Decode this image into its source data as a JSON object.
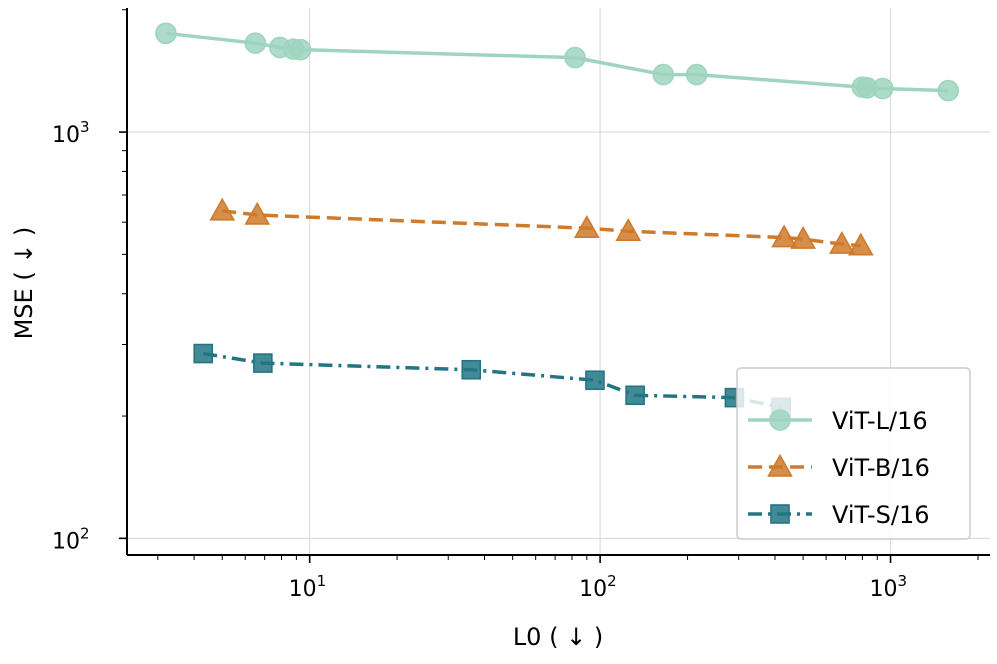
{
  "chart_data": {
    "type": "line",
    "xscale": "log",
    "yscale": "log",
    "xlabel": "L0 ( ↓ )",
    "ylabel": "MSE ( ↓ )",
    "xlim": [
      2.35,
      2200
    ],
    "ylim": [
      91,
      2020
    ],
    "x_ticks": [
      {
        "value": 10,
        "base": "10",
        "exp": "1"
      },
      {
        "value": 100,
        "base": "10",
        "exp": "2"
      },
      {
        "value": 1000,
        "base": "10",
        "exp": "3"
      }
    ],
    "y_ticks": [
      {
        "value": 100,
        "base": "10",
        "exp": "2"
      },
      {
        "value": 1000,
        "base": "10",
        "exp": "3"
      }
    ],
    "grid": true,
    "legend_position": "bottom-right",
    "series": [
      {
        "name": "ViT-L/16",
        "color": "#9fd5c0",
        "marker": "circle",
        "dash": "solid",
        "points": [
          [
            3.2,
            1750
          ],
          [
            6.5,
            1655
          ],
          [
            7.9,
            1615
          ],
          [
            8.8,
            1600
          ],
          [
            9.3,
            1595
          ],
          [
            82,
            1525
          ],
          [
            165,
            1385
          ],
          [
            215,
            1385
          ],
          [
            800,
            1290
          ],
          [
            830,
            1285
          ],
          [
            940,
            1280
          ],
          [
            1580,
            1265
          ]
        ]
      },
      {
        "name": "ViT-B/16",
        "color": "#cf7a2c",
        "marker": "triangle",
        "dash": "dashed",
        "points": [
          [
            5.0,
            640
          ],
          [
            6.6,
            625
          ],
          [
            90,
            580
          ],
          [
            125,
            570
          ],
          [
            430,
            550
          ],
          [
            500,
            545
          ],
          [
            680,
            530
          ],
          [
            790,
            525
          ]
        ]
      },
      {
        "name": "ViT-S/16",
        "color": "#237584",
        "marker": "square",
        "dash": "dashdot",
        "points": [
          [
            4.3,
            285
          ],
          [
            6.9,
            270
          ],
          [
            36,
            260
          ],
          [
            96,
            245
          ],
          [
            132,
            225
          ],
          [
            290,
            222
          ],
          [
            420,
            210
          ]
        ]
      }
    ]
  }
}
